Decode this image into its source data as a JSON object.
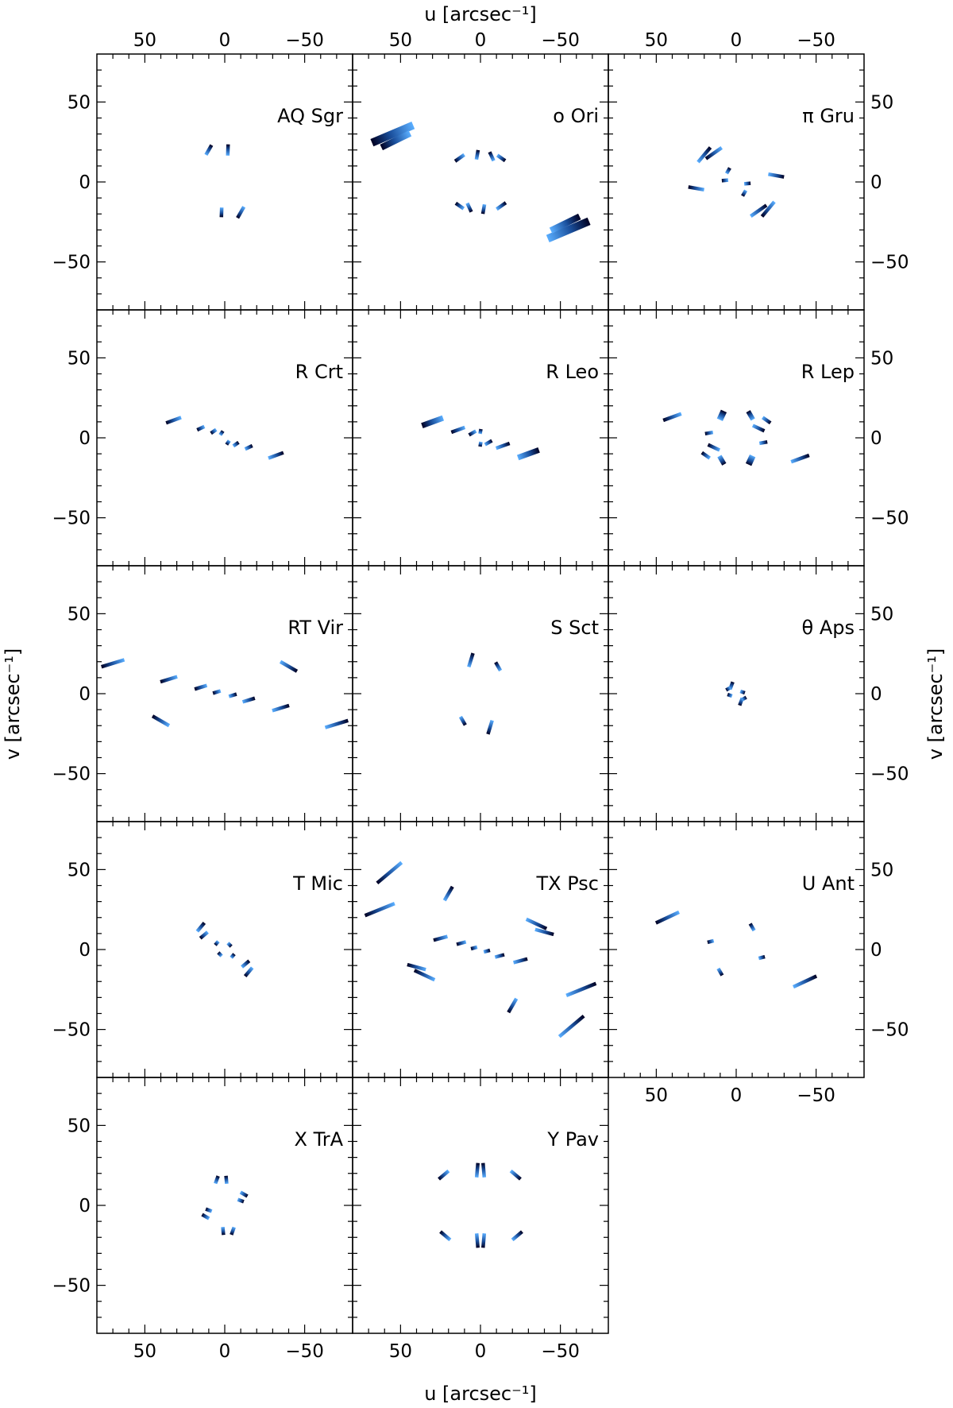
{
  "chart_data": {
    "type": "scatter",
    "figure": {
      "xlabel_top": "u [arcsec⁻¹]",
      "xlabel_bottom": "u [arcsec⁻¹]",
      "ylabel_left": "v [arcsec⁻¹]",
      "ylabel_right": "v [arcsec⁻¹]",
      "xlim": [
        80,
        -80
      ],
      "ylim": [
        -80,
        80
      ],
      "major_ticks": [
        -50,
        0,
        50
      ],
      "tick_labels": [
        "−50",
        "0",
        "50"
      ],
      "grid": false,
      "columns": 3,
      "color_near": "#5aaeff",
      "color_far": "#000022"
    },
    "panels": [
      {
        "name": "AQ Sgr",
        "segments": [
          {
            "u": -2,
            "v": 20,
            "ang": 92,
            "len": 7
          },
          {
            "u": 10,
            "v": 20,
            "ang": 120,
            "len": 7
          },
          {
            "u": 2,
            "v": -19,
            "ang": 272,
            "len": 6
          },
          {
            "u": -10,
            "v": -19,
            "ang": 300,
            "len": 8
          }
        ]
      },
      {
        "name": "o Ori",
        "segments": [
          {
            "u": 55,
            "v": 30,
            "ang": 157,
            "len": 28,
            "w": 10
          },
          {
            "u": 53,
            "v": 26,
            "ang": 154,
            "len": 20,
            "w": 8
          },
          {
            "u": -55,
            "v": -30,
            "ang": 337,
            "len": 28,
            "w": 10
          },
          {
            "u": -53,
            "v": -26,
            "ang": 334,
            "len": 20,
            "w": 8
          },
          {
            "u": 13,
            "v": 15,
            "ang": 145,
            "len": 7
          },
          {
            "u": 2,
            "v": 17,
            "ang": 100,
            "len": 6
          },
          {
            "u": -7,
            "v": 16,
            "ang": 65,
            "len": 6
          },
          {
            "u": -13,
            "v": 15,
            "ang": 35,
            "len": 6
          },
          {
            "u": -13,
            "v": -15,
            "ang": 325,
            "len": 7
          },
          {
            "u": -2,
            "v": -17,
            "ang": 280,
            "len": 6
          },
          {
            "u": 7,
            "v": -16,
            "ang": 245,
            "len": 6
          },
          {
            "u": 13,
            "v": -15,
            "ang": 215,
            "len": 6
          }
        ]
      },
      {
        "name": "π Gru",
        "segments": [
          {
            "u": 14,
            "v": 18,
            "ang": 145,
            "len": 12
          },
          {
            "u": -14,
            "v": -18,
            "ang": 325,
            "len": 12
          },
          {
            "u": 25,
            "v": -4,
            "ang": 190,
            "len": 10
          },
          {
            "u": -25,
            "v": 4,
            "ang": 10,
            "len": 10
          },
          {
            "u": -20,
            "v": -17,
            "ang": 310,
            "len": 12
          },
          {
            "u": 20,
            "v": 17,
            "ang": 130,
            "len": 12
          },
          {
            "u": 7,
            "v": 1,
            "ang": 175,
            "len": 4
          },
          {
            "u": -7,
            "v": -1,
            "ang": 355,
            "len": 4
          },
          {
            "u": 5,
            "v": 7,
            "ang": 120,
            "len": 4
          },
          {
            "u": -5,
            "v": -7,
            "ang": 300,
            "len": 4
          }
        ]
      },
      {
        "name": "R Crt",
        "segments": [
          {
            "u": 32,
            "v": 11,
            "ang": 160,
            "len": 10
          },
          {
            "u": -32,
            "v": -11,
            "ang": 340,
            "len": 10
          },
          {
            "u": 15,
            "v": 6,
            "ang": 155,
            "len": 5
          },
          {
            "u": -15,
            "v": -6,
            "ang": 335,
            "len": 5
          },
          {
            "u": 7,
            "v": 4,
            "ang": 145,
            "len": 4
          },
          {
            "u": -7,
            "v": -4,
            "ang": 325,
            "len": 4
          },
          {
            "u": 2,
            "v": 3,
            "ang": 125,
            "len": 3
          },
          {
            "u": -2,
            "v": -3,
            "ang": 305,
            "len": 3
          }
        ]
      },
      {
        "name": "R Leo",
        "segments": [
          {
            "u": 30,
            "v": 10,
            "ang": 160,
            "len": 14,
            "w": 7
          },
          {
            "u": -30,
            "v": -10,
            "ang": 340,
            "len": 14,
            "w": 7
          },
          {
            "u": 14,
            "v": 5,
            "ang": 160,
            "len": 9
          },
          {
            "u": -14,
            "v": -5,
            "ang": 340,
            "len": 9
          },
          {
            "u": 5,
            "v": 3,
            "ang": 150,
            "len": 5
          },
          {
            "u": -5,
            "v": -3,
            "ang": 330,
            "len": 5
          },
          {
            "u": 0,
            "v": 4,
            "ang": 100,
            "len": 3
          },
          {
            "u": 0,
            "v": -4,
            "ang": 280,
            "len": 3
          }
        ]
      },
      {
        "name": "R Lep",
        "segments": [
          {
            "u": 40,
            "v": 13,
            "ang": 160,
            "len": 12
          },
          {
            "u": -40,
            "v": -13,
            "ang": 340,
            "len": 12
          },
          {
            "u": 9,
            "v": 14,
            "ang": 115,
            "len": 6,
            "w": 8
          },
          {
            "u": -9,
            "v": -14,
            "ang": 295,
            "len": 6,
            "w": 8
          },
          {
            "u": -9,
            "v": 14,
            "ang": 60,
            "len": 6,
            "w": 6
          },
          {
            "u": 9,
            "v": -14,
            "ang": 240,
            "len": 6,
            "w": 6
          },
          {
            "u": 14,
            "v": -6,
            "ang": 205,
            "len": 8
          },
          {
            "u": -14,
            "v": 6,
            "ang": 25,
            "len": 8
          },
          {
            "u": 17,
            "v": 3,
            "ang": 170,
            "len": 5
          },
          {
            "u": -17,
            "v": -3,
            "ang": 350,
            "len": 5
          },
          {
            "u": 19,
            "v": -11,
            "ang": 215,
            "len": 6
          },
          {
            "u": -19,
            "v": 11,
            "ang": 35,
            "len": 6
          }
        ]
      },
      {
        "name": "RT Vir",
        "segments": [
          {
            "u": 70,
            "v": 19,
            "ang": 163,
            "len": 15
          },
          {
            "u": -70,
            "v": -19,
            "ang": 343,
            "len": 15
          },
          {
            "u": 35,
            "v": 9,
            "ang": 163,
            "len": 11
          },
          {
            "u": -35,
            "v": -9,
            "ang": 343,
            "len": 11
          },
          {
            "u": 15,
            "v": 4,
            "ang": 163,
            "len": 8
          },
          {
            "u": -15,
            "v": -4,
            "ang": 343,
            "len": 8
          },
          {
            "u": 5,
            "v": 1,
            "ang": 163,
            "len": 5
          },
          {
            "u": -5,
            "v": -1,
            "ang": 343,
            "len": 5
          },
          {
            "u": 40,
            "v": -17,
            "ang": 210,
            "len": 12
          },
          {
            "u": -40,
            "v": 17,
            "ang": 30,
            "len": 12
          }
        ]
      },
      {
        "name": "S Sct",
        "segments": [
          {
            "u": 6,
            "v": 21,
            "ang": 107,
            "len": 9
          },
          {
            "u": -6,
            "v": -21,
            "ang": 287,
            "len": 9
          },
          {
            "u": -11,
            "v": 17,
            "ang": 60,
            "len": 6
          },
          {
            "u": 11,
            "v": -17,
            "ang": 240,
            "len": 6
          }
        ]
      },
      {
        "name": "θ Aps",
        "segments": [
          {
            "u": 3,
            "v": 5,
            "ang": 110,
            "len": 5
          },
          {
            "u": -3,
            "v": -5,
            "ang": 290,
            "len": 5
          },
          {
            "u": -4,
            "v": 1,
            "ang": 20,
            "len": 3
          },
          {
            "u": 4,
            "v": -1,
            "ang": 200,
            "len": 3
          },
          {
            "u": 5,
            "v": 3,
            "ang": 150,
            "len": 3
          },
          {
            "u": -5,
            "v": -3,
            "ang": 330,
            "len": 3
          }
        ]
      },
      {
        "name": "T Mic",
        "segments": [
          {
            "u": 15,
            "v": 14,
            "ang": 130,
            "len": 7
          },
          {
            "u": -15,
            "v": -14,
            "ang": 310,
            "len": 7
          },
          {
            "u": 13,
            "v": 9,
            "ang": 140,
            "len": 6
          },
          {
            "u": -13,
            "v": -9,
            "ang": 320,
            "len": 6
          },
          {
            "u": 5,
            "v": 4,
            "ang": 130,
            "len": 3
          },
          {
            "u": -5,
            "v": -4,
            "ang": 310,
            "len": 3
          },
          {
            "u": 3,
            "v": -3,
            "ang": 225,
            "len": 3
          },
          {
            "u": -3,
            "v": 3,
            "ang": 45,
            "len": 3
          }
        ]
      },
      {
        "name": "TX Psc",
        "segments": [
          {
            "u": 57,
            "v": 48,
            "ang": 140,
            "len": 20
          },
          {
            "u": -57,
            "v": -48,
            "ang": 320,
            "len": 20
          },
          {
            "u": 63,
            "v": 25,
            "ang": 158,
            "len": 20
          },
          {
            "u": -63,
            "v": -25,
            "ang": 338,
            "len": 20
          },
          {
            "u": 20,
            "v": 35,
            "ang": 120,
            "len": 10
          },
          {
            "u": -20,
            "v": -35,
            "ang": 300,
            "len": 10
          },
          {
            "u": 35,
            "v": -16,
            "ang": 205,
            "len": 14
          },
          {
            "u": -35,
            "v": 16,
            "ang": 25,
            "len": 14
          },
          {
            "u": 40,
            "v": -11,
            "ang": 195,
            "len": 12
          },
          {
            "u": -40,
            "v": 11,
            "ang": 15,
            "len": 12
          },
          {
            "u": 25,
            "v": 7,
            "ang": 165,
            "len": 9
          },
          {
            "u": -25,
            "v": -7,
            "ang": 345,
            "len": 9
          },
          {
            "u": 12,
            "v": 4,
            "ang": 165,
            "len": 6
          },
          {
            "u": -12,
            "v": -4,
            "ang": 345,
            "len": 6
          },
          {
            "u": 4,
            "v": 1,
            "ang": 165,
            "len": 4
          },
          {
            "u": -4,
            "v": -1,
            "ang": 345,
            "len": 4
          }
        ]
      },
      {
        "name": "U Ant",
        "segments": [
          {
            "u": 43,
            "v": 20,
            "ang": 155,
            "len": 16
          },
          {
            "u": -43,
            "v": -20,
            "ang": 335,
            "len": 16
          },
          {
            "u": -10,
            "v": 14,
            "ang": 60,
            "len": 5
          },
          {
            "u": 10,
            "v": -14,
            "ang": 240,
            "len": 5
          },
          {
            "u": 16,
            "v": 5,
            "ang": 165,
            "len": 4
          },
          {
            "u": -16,
            "v": -5,
            "ang": 345,
            "len": 4
          }
        ]
      },
      {
        "name": "X TrA",
        "segments": [
          {
            "u": -1,
            "v": 16,
            "ang": 85,
            "len": 5
          },
          {
            "u": 1,
            "v": -16,
            "ang": 265,
            "len": 5
          },
          {
            "u": -10,
            "v": 3,
            "ang": 20,
            "len": 4
          },
          {
            "u": 10,
            "v": -3,
            "ang": 200,
            "len": 4
          },
          {
            "u": 5,
            "v": 16,
            "ang": 110,
            "len": 5
          },
          {
            "u": -5,
            "v": -16,
            "ang": 290,
            "len": 5
          },
          {
            "u": -12,
            "v": 7,
            "ang": 30,
            "len": 5
          },
          {
            "u": 12,
            "v": -7,
            "ang": 210,
            "len": 5
          }
        ]
      },
      {
        "name": "Y Pav",
        "segments": [
          {
            "u": 2,
            "v": 22,
            "ang": 95,
            "len": 9
          },
          {
            "u": -2,
            "v": -22,
            "ang": 275,
            "len": 9
          },
          {
            "u": -2,
            "v": 22,
            "ang": 85,
            "len": 9
          },
          {
            "u": 2,
            "v": -22,
            "ang": 265,
            "len": 9
          },
          {
            "u": 23,
            "v": 19,
            "ang": 140,
            "len": 8
          },
          {
            "u": -23,
            "v": -19,
            "ang": 320,
            "len": 8
          },
          {
            "u": -22,
            "v": 19,
            "ang": 40,
            "len": 8
          },
          {
            "u": 22,
            "v": -19,
            "ang": 220,
            "len": 8
          }
        ]
      }
    ]
  }
}
